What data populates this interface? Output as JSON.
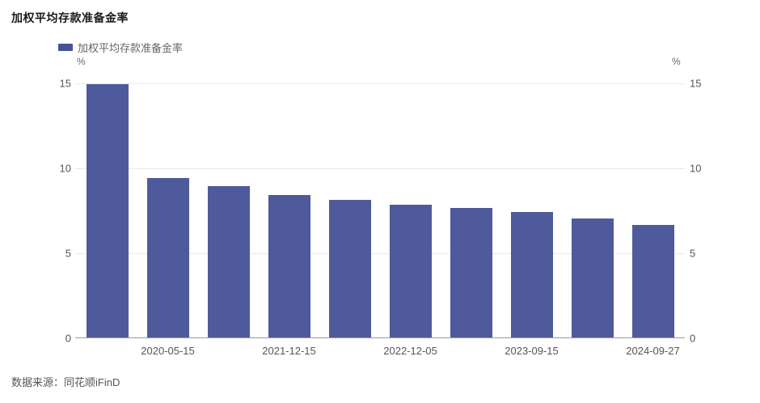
{
  "title": "加权平均存款准备金率",
  "legend": {
    "label": "加权平均存款准备金率",
    "swatch_color": "#47519B"
  },
  "axes": {
    "unit_left": "%",
    "unit_right": "%"
  },
  "source": "数据来源：同花顺iFinD",
  "chart_data": {
    "type": "bar",
    "title": "加权平均存款准备金率",
    "series_name": "加权平均存款准备金率",
    "values": [
      14.9,
      9.4,
      8.9,
      8.4,
      8.1,
      7.8,
      7.6,
      7.4,
      7.0,
      6.6
    ],
    "x_tick_labels": [
      "2020-05-15",
      "2021-12-15",
      "2022-12-05",
      "2023-09-15",
      "2024-09-27"
    ],
    "x_tick_bar_indices": [
      1,
      3,
      5,
      7,
      9
    ],
    "ylim": [
      0,
      15
    ],
    "y_ticks": [
      0,
      5,
      10,
      15
    ],
    "ylabel": "%",
    "grid": true,
    "legend_position": "top-left",
    "bar_color": "#4E5A9B",
    "grid_color": "#E9E9E9",
    "axis_line_color": "#999999"
  }
}
